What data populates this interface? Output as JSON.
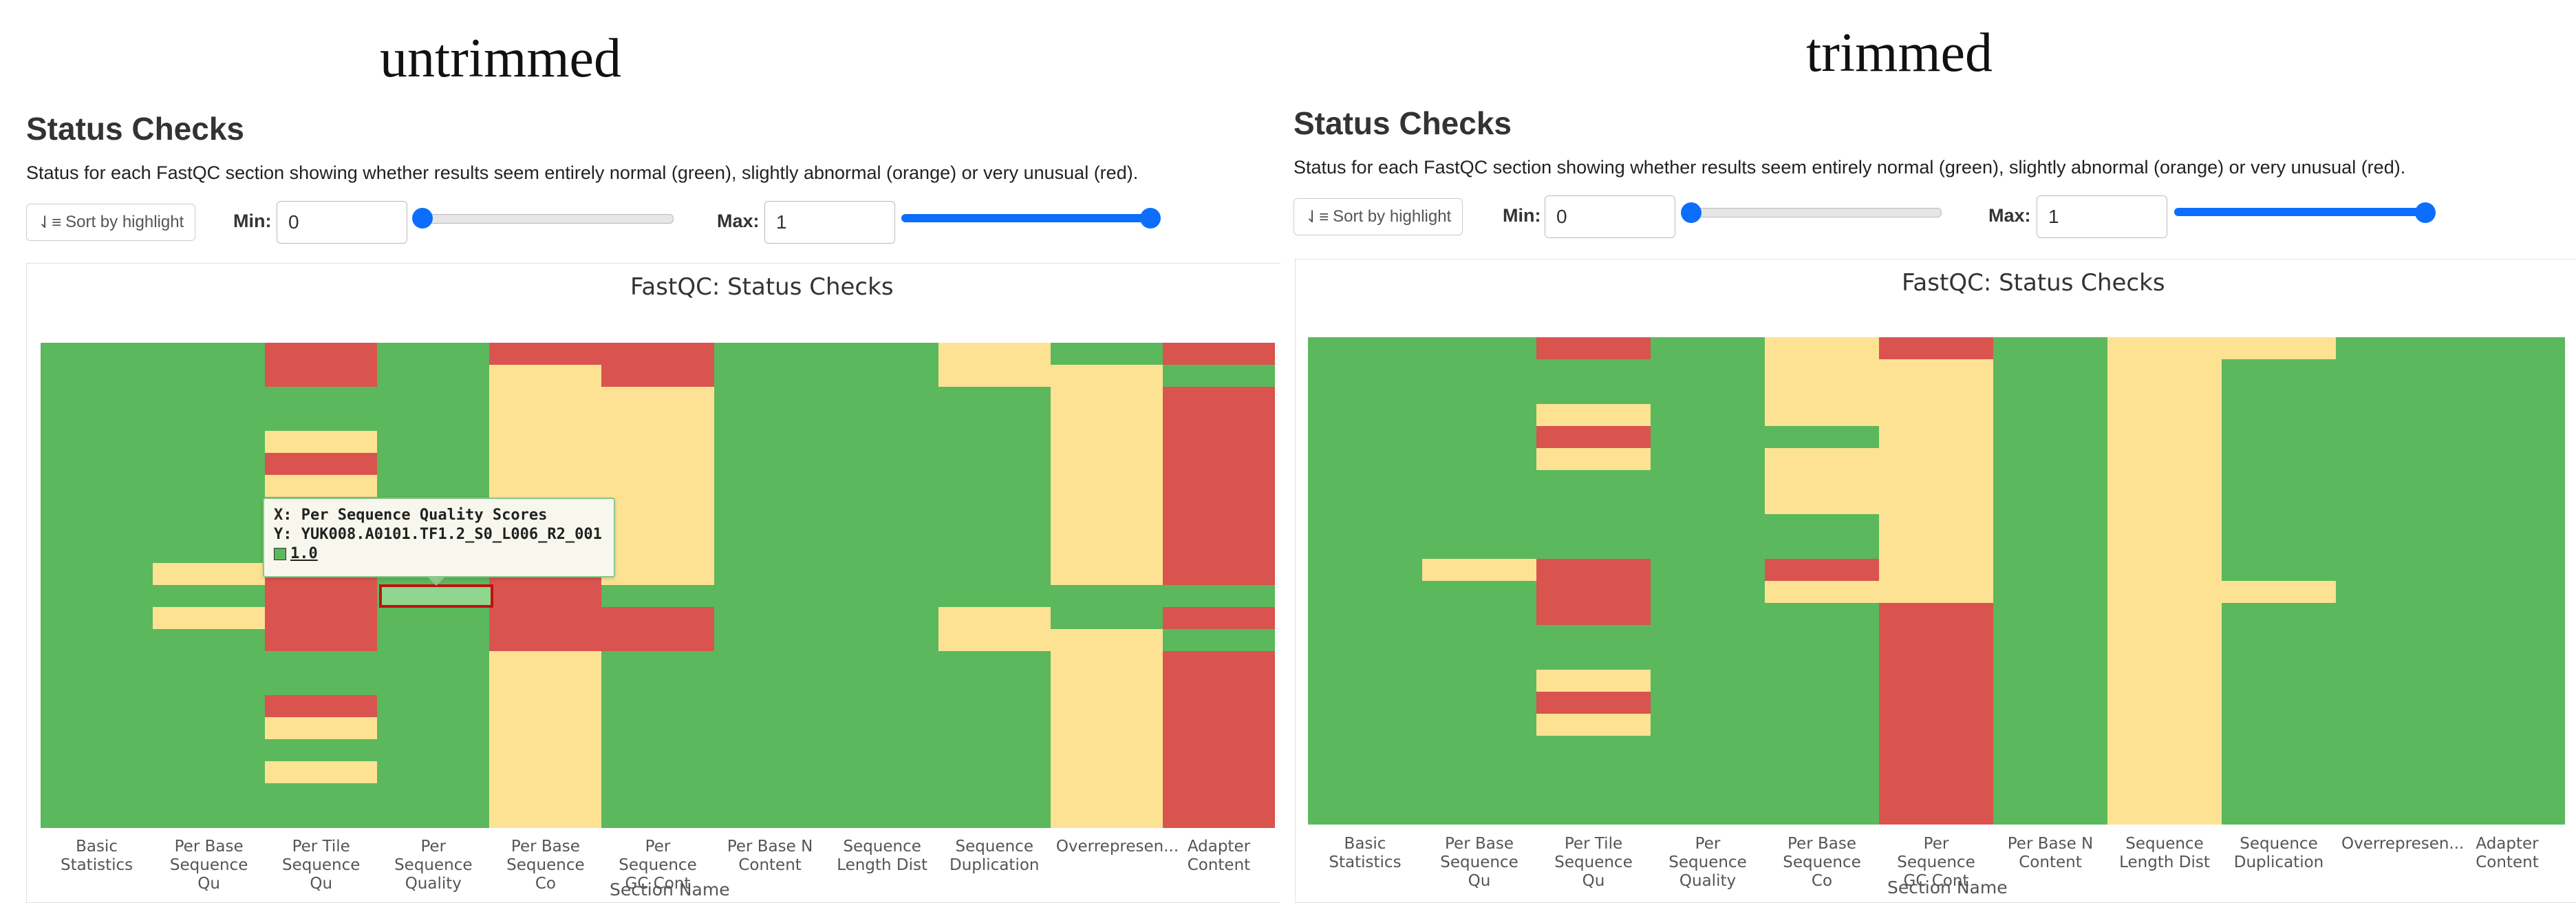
{
  "colors": {
    "pass": "#5cb85c",
    "warn": "#fde294",
    "fail": "#d9534f",
    "accent": "#0d6efd"
  },
  "icons": {
    "sort": "sort-amount-icon"
  },
  "left": {
    "panel_title": "untrimmed",
    "heading": "Status Checks",
    "description": "Status for each FastQC section showing whether results seem entirely normal (green), slightly abnormal (orange) or very unusual (red).",
    "sort_label": "Sort by highlight",
    "min_label": "Min:",
    "min_value": "0",
    "max_label": "Max:",
    "max_value": "1",
    "tooltip": {
      "x_line": "X: Per Sequence Quality Scores",
      "y_line": "Y: YUK008.A0101.TF1.2_S0_L006_R2_001",
      "value": "1.0"
    }
  },
  "right": {
    "panel_title": "trimmed",
    "heading": "Status Checks",
    "description": "Status for each FastQC section showing whether results seem entirely normal (green), slightly abnormal (orange) or very unusual (red).",
    "sort_label": "Sort by highlight",
    "min_label": "Min:",
    "min_value": "0",
    "max_label": "Max:",
    "max_value": "1"
  },
  "chart_data": [
    {
      "type": "heatmap",
      "title": "FastQC: Status Checks",
      "xlabel": "Section Name",
      "categories": [
        "Basic Statistics",
        "Per Base Sequence Qu",
        "Per Tile Sequence Qu",
        "Per Sequence Quality",
        "Per Base Sequence Co",
        "Per Sequence GC Cont",
        "Per Base N Content",
        "Sequence Length Dist",
        "Sequence Duplication",
        "Overrepresen...",
        "Adapter Content"
      ],
      "value_legend": {
        "0": "fail",
        "0.5": "warn",
        "1": "pass"
      },
      "rows": 22,
      "values": [
        [
          1,
          1,
          0,
          1,
          0,
          0,
          1,
          1,
          0.5,
          1,
          0
        ],
        [
          1,
          1,
          0,
          1,
          0.5,
          0,
          1,
          1,
          0.5,
          0.5,
          1
        ],
        [
          1,
          1,
          1,
          1,
          0.5,
          0.5,
          1,
          1,
          1,
          0.5,
          0
        ],
        [
          1,
          1,
          1,
          1,
          0.5,
          0.5,
          1,
          1,
          1,
          0.5,
          0
        ],
        [
          1,
          1,
          0.5,
          1,
          0.5,
          0.5,
          1,
          1,
          1,
          0.5,
          0
        ],
        [
          1,
          1,
          0,
          1,
          0.5,
          0.5,
          1,
          1,
          1,
          0.5,
          0
        ],
        [
          1,
          1,
          0.5,
          1,
          0.5,
          0.5,
          1,
          1,
          1,
          0.5,
          0
        ],
        [
          1,
          1,
          1,
          1,
          0.5,
          0.5,
          1,
          1,
          1,
          0.5,
          0
        ],
        [
          1,
          1,
          1,
          1,
          0.5,
          0.5,
          1,
          1,
          1,
          0.5,
          0
        ],
        [
          1,
          1,
          1,
          1,
          0.5,
          0.5,
          1,
          1,
          1,
          0.5,
          0
        ],
        [
          1,
          0.5,
          0,
          1,
          0,
          0.5,
          1,
          1,
          1,
          0.5,
          0
        ],
        [
          1,
          1,
          0,
          1,
          0,
          1,
          1,
          1,
          1,
          1,
          1
        ],
        [
          1,
          0.5,
          0,
          1,
          0,
          0,
          1,
          1,
          0.5,
          1,
          0
        ],
        [
          1,
          1,
          0,
          1,
          0,
          0,
          1,
          1,
          0.5,
          0.5,
          1
        ],
        [
          1,
          1,
          1,
          1,
          0.5,
          1,
          1,
          1,
          1,
          0.5,
          0
        ],
        [
          1,
          1,
          1,
          1,
          0.5,
          1,
          1,
          1,
          1,
          0.5,
          0
        ],
        [
          1,
          1,
          0,
          1,
          0.5,
          1,
          1,
          1,
          1,
          0.5,
          0
        ],
        [
          1,
          1,
          0.5,
          1,
          0.5,
          1,
          1,
          1,
          1,
          0.5,
          0
        ],
        [
          1,
          1,
          1,
          1,
          0.5,
          1,
          1,
          1,
          1,
          0.5,
          0
        ],
        [
          1,
          1,
          0.5,
          1,
          0.5,
          1,
          1,
          1,
          1,
          0.5,
          0
        ],
        [
          1,
          1,
          1,
          1,
          0.5,
          1,
          1,
          1,
          1,
          0.5,
          0
        ],
        [
          1,
          1,
          1,
          1,
          0.5,
          1,
          1,
          1,
          1,
          0.5,
          0
        ]
      ]
    },
    {
      "type": "heatmap",
      "title": "FastQC: Status Checks",
      "xlabel": "Section Name",
      "categories": [
        "Basic Statistics",
        "Per Base Sequence Qu",
        "Per Tile Sequence Qu",
        "Per Sequence Quality",
        "Per Base Sequence Co",
        "Per Sequence GC Cont",
        "Per Base N Content",
        "Sequence Length Dist",
        "Sequence Duplication",
        "Overrepresen...",
        "Adapter Content"
      ],
      "value_legend": {
        "0": "fail",
        "0.5": "warn",
        "1": "pass"
      },
      "rows": 22,
      "values": [
        [
          1,
          1,
          0,
          1,
          0.5,
          0,
          1,
          0.5,
          0.5,
          1,
          1
        ],
        [
          1,
          1,
          1,
          1,
          0.5,
          0.5,
          1,
          0.5,
          1,
          1,
          1
        ],
        [
          1,
          1,
          1,
          1,
          0.5,
          0.5,
          1,
          0.5,
          1,
          1,
          1
        ],
        [
          1,
          1,
          0.5,
          1,
          0.5,
          0.5,
          1,
          0.5,
          1,
          1,
          1
        ],
        [
          1,
          1,
          0,
          1,
          1,
          0.5,
          1,
          0.5,
          1,
          1,
          1
        ],
        [
          1,
          1,
          0.5,
          1,
          0.5,
          0.5,
          1,
          0.5,
          1,
          1,
          1
        ],
        [
          1,
          1,
          1,
          1,
          0.5,
          0.5,
          1,
          0.5,
          1,
          1,
          1
        ],
        [
          1,
          1,
          1,
          1,
          0.5,
          0.5,
          1,
          0.5,
          1,
          1,
          1
        ],
        [
          1,
          1,
          1,
          1,
          1,
          0.5,
          1,
          0.5,
          1,
          1,
          1
        ],
        [
          1,
          1,
          1,
          1,
          1,
          0.5,
          1,
          0.5,
          1,
          1,
          1
        ],
        [
          1,
          0.5,
          0,
          1,
          0,
          0.5,
          1,
          0.5,
          1,
          1,
          1
        ],
        [
          1,
          1,
          0,
          1,
          0.5,
          0.5,
          1,
          0.5,
          0.5,
          1,
          1
        ],
        [
          1,
          1,
          0,
          1,
          1,
          0,
          1,
          0.5,
          1,
          1,
          1
        ],
        [
          1,
          1,
          1,
          1,
          1,
          0,
          1,
          0.5,
          1,
          1,
          1
        ],
        [
          1,
          1,
          1,
          1,
          1,
          0,
          1,
          0.5,
          1,
          1,
          1
        ],
        [
          1,
          1,
          0.5,
          1,
          1,
          0,
          1,
          0.5,
          1,
          1,
          1
        ],
        [
          1,
          1,
          0,
          1,
          1,
          0,
          1,
          0.5,
          1,
          1,
          1
        ],
        [
          1,
          1,
          0.5,
          1,
          1,
          0,
          1,
          0.5,
          1,
          1,
          1
        ],
        [
          1,
          1,
          1,
          1,
          1,
          0,
          1,
          0.5,
          1,
          1,
          1
        ],
        [
          1,
          1,
          1,
          1,
          1,
          0,
          1,
          0.5,
          1,
          1,
          1
        ],
        [
          1,
          1,
          1,
          1,
          1,
          0,
          1,
          0.5,
          1,
          1,
          1
        ],
        [
          1,
          1,
          1,
          1,
          1,
          0,
          1,
          0.5,
          1,
          1,
          1
        ]
      ]
    }
  ]
}
